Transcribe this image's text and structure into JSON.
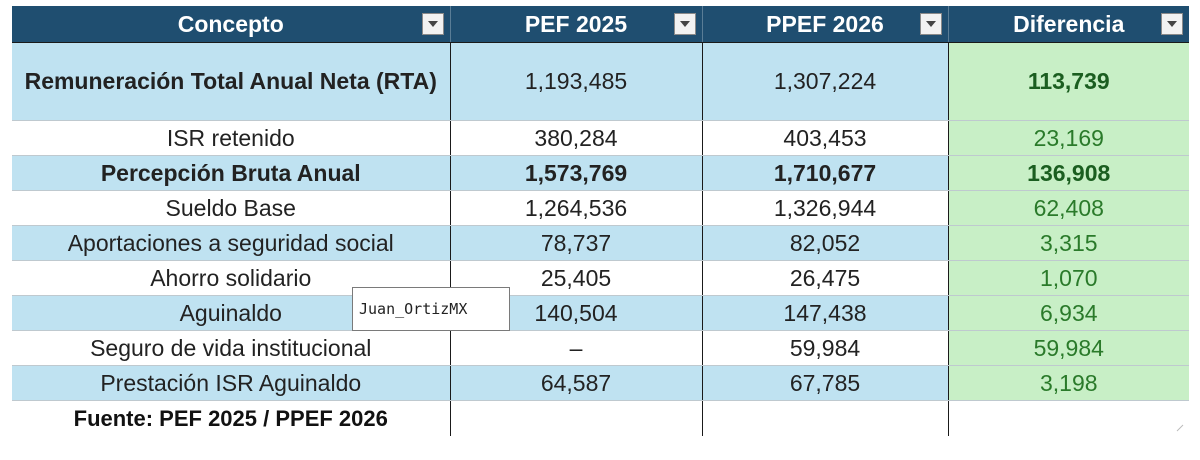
{
  "table": {
    "headers": [
      {
        "label": "Concepto"
      },
      {
        "label": "PEF 2025"
      },
      {
        "label": "PPEF 2026"
      },
      {
        "label": "Diferencia"
      }
    ],
    "rows": [
      {
        "concept": "Remuneración Total Anual Neta (RTA)",
        "pef2025": "1,193,485",
        "ppef2026": "1,307,224",
        "diff": "113,739"
      },
      {
        "concept": "ISR retenido",
        "pef2025": "380,284",
        "ppef2026": "403,453",
        "diff": "23,169"
      },
      {
        "concept": "Percepción Bruta Anual",
        "pef2025": "1,573,769",
        "ppef2026": "1,710,677",
        "diff": "136,908"
      },
      {
        "concept": "Sueldo Base",
        "pef2025": "1,264,536",
        "ppef2026": "1,326,944",
        "diff": "62,408"
      },
      {
        "concept": "Aportaciones a seguridad social",
        "pef2025": "78,737",
        "ppef2026": "82,052",
        "diff": "3,315"
      },
      {
        "concept": "Ahorro solidario",
        "pef2025": "25,405",
        "ppef2026": "26,475",
        "diff": "1,070"
      },
      {
        "concept": "Aguinaldo",
        "pef2025": "140,504",
        "ppef2026": "147,438",
        "diff": "6,934"
      },
      {
        "concept": "Seguro de vida institucional",
        "pef2025": "–",
        "ppef2026": "59,984",
        "diff": "59,984"
      },
      {
        "concept": "Prestación ISR Aguinaldo",
        "pef2025": "64,587",
        "ppef2026": "67,785",
        "diff": "3,198"
      }
    ],
    "source_note": "Fuente: PEF 2025 / PPEF 2026"
  },
  "tooltip": {
    "text": "Juan_OrtizMX"
  },
  "colors": {
    "header_bg": "#1f4e70",
    "row_blue": "#bfe2f1",
    "diff_green_bg": "#c8efc6",
    "diff_green_text": "#2a7a2a"
  },
  "icons": {
    "filter": "dropdown-arrow-icon"
  }
}
